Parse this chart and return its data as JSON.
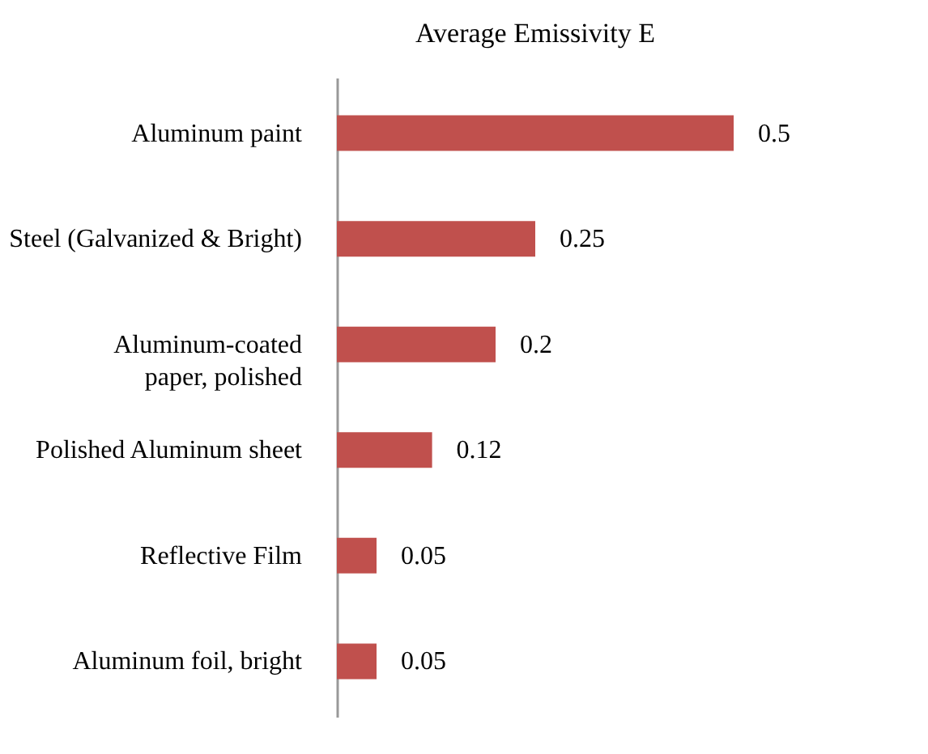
{
  "chart_data": {
    "type": "bar",
    "orientation": "horizontal",
    "title": "Average Emissivity E",
    "categories": [
      "Aluminum paint",
      "Steel (Galvanized & Bright)",
      "Aluminum-coated paper, polished",
      "Polished Aluminum sheet",
      "Reflective Film",
      "Aluminum foil, bright"
    ],
    "values": [
      0.5,
      0.25,
      0.2,
      0.12,
      0.05,
      0.05
    ],
    "color": "#c0504d",
    "xlim": [
      0,
      0.5
    ],
    "data_labels": true,
    "tick_labels": "y"
  }
}
